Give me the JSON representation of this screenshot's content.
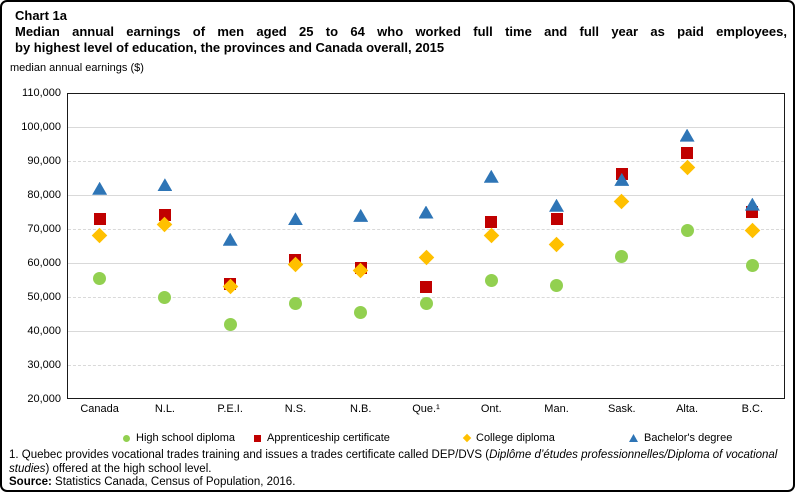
{
  "header": {
    "chart_label": "Chart 1a",
    "title_line1": "Median annual earnings of men aged 25 to 64 who worked full time and full year as paid employees,",
    "title_line2": "by highest level of education, the provinces and Canada overall, 2015",
    "axis_unit_label": "median annual earnings ($)"
  },
  "chart_data": {
    "type": "scatter",
    "title": "Median annual earnings of men aged 25 to 64 who worked full time and full year as paid employees, by highest level of education, the provinces and Canada overall, 2015",
    "ylabel": "median annual earnings ($)",
    "categories": [
      "Canada",
      "N.L.",
      "P.E.I.",
      "N.S.",
      "N.B.",
      "Que.¹",
      "Ont.",
      "Man.",
      "Sask.",
      "Alta.",
      "B.C."
    ],
    "y_axis": {
      "min": 20000,
      "max": 110000,
      "tick_step": 10000,
      "tick_labels": [
        "110,000",
        "100,000",
        "90,000",
        "80,000",
        "70,000",
        "60,000",
        "50,000",
        "40,000",
        "30,000",
        "20,000"
      ]
    },
    "grid": "horizontal gridlines, alternating solid and dashed, light gray",
    "legend_position": "bottom",
    "series": [
      {
        "name": "High school diploma",
        "marker": "circle",
        "color": "#92D050",
        "values": [
          55500,
          50000,
          42000,
          48000,
          45500,
          48000,
          55000,
          53500,
          62000,
          69700,
          59200
        ]
      },
      {
        "name": "Apprenticeship certificate",
        "marker": "square",
        "color": "#C00000",
        "values": [
          73000,
          74000,
          53800,
          61000,
          58500,
          53000,
          72000,
          73000,
          86300,
          92500,
          75000
        ]
      },
      {
        "name": "College diploma",
        "marker": "diamond",
        "color": "#FFC000",
        "values": [
          68000,
          71300,
          53200,
          59600,
          57800,
          61500,
          68000,
          65300,
          78200,
          88000,
          69500
        ]
      },
      {
        "name": "Bachelor's degree",
        "marker": "triangle",
        "color": "#2E75B6",
        "values": [
          82000,
          83000,
          67000,
          73000,
          74000,
          75000,
          85500,
          77000,
          84600,
          97600,
          77300
        ]
      }
    ]
  },
  "footnotes": {
    "note1_prefix": "1. Quebec provides vocational trades training and issues a trades certificate called DEP/DVS (",
    "note1_italic": "Diplôme d’études professionnelles/Diploma of vocational studies",
    "note1_suffix": ") offered at the high school level.",
    "source_label": "Source:",
    "source_text": " Statistics Canada, Census of Population, 2016."
  }
}
